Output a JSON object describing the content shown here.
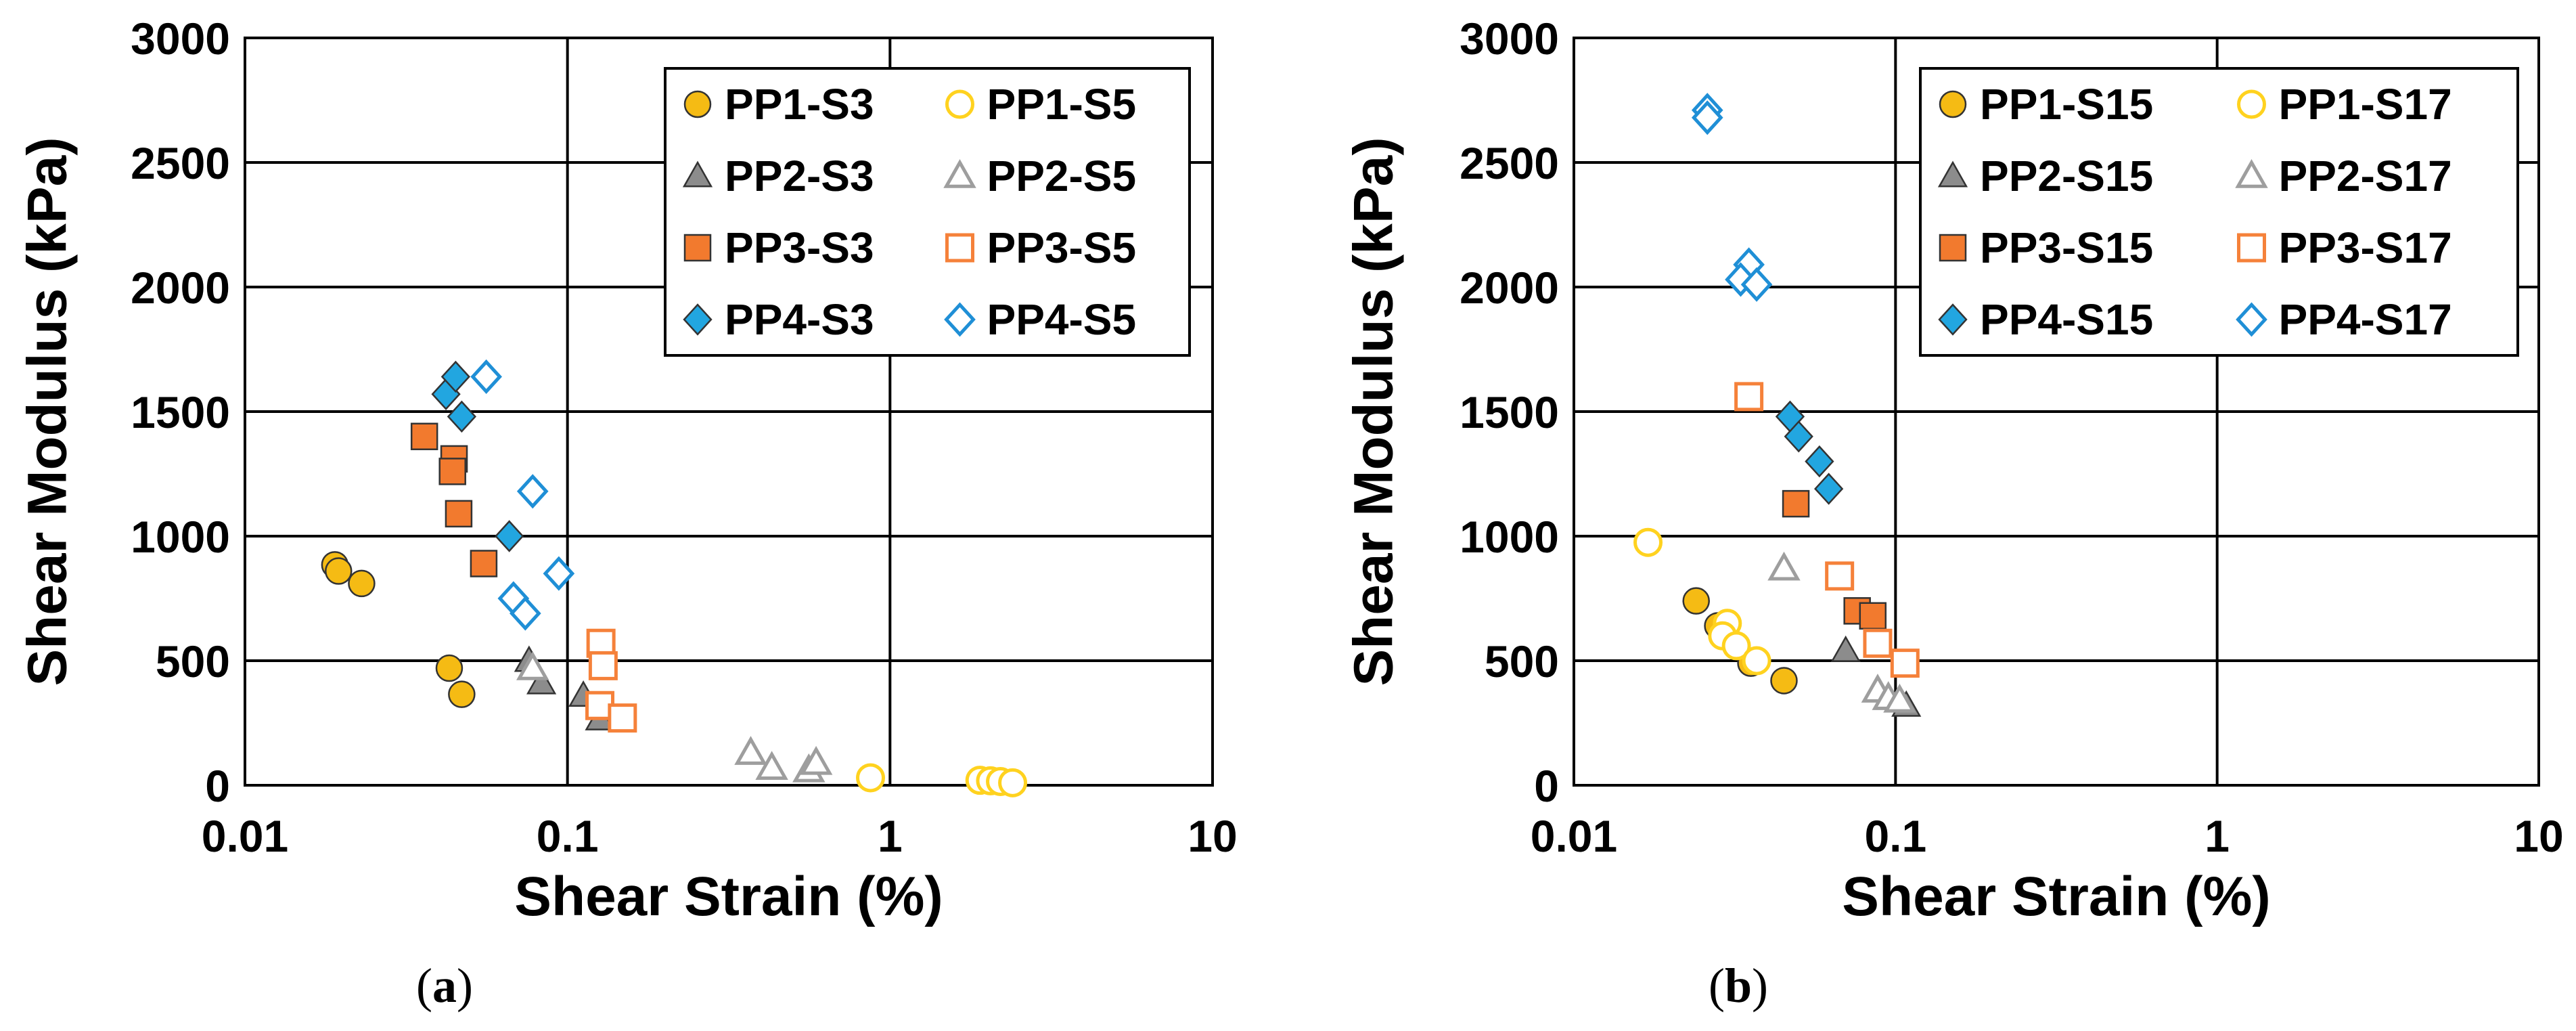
{
  "colors": {
    "PP1": "#f5bb14",
    "PP1_open": "#ffd21f",
    "PP2": "#8c8c8c",
    "PP2_open": "#9e9e9e",
    "PP3": "#f27a2e",
    "PP3_open": "#f5813a",
    "PP4": "#22a6e0",
    "PP4_open": "#1f8fd6"
  },
  "chart_data": [
    {
      "type": "scatter",
      "panel_label": "a",
      "xscale": "log",
      "xlim": [
        0.01,
        10
      ],
      "ylim": [
        0,
        3000
      ],
      "xticks": [
        0.01,
        0.1,
        1,
        10
      ],
      "xtick_labels": [
        "0.01",
        "0.1",
        "1",
        "10"
      ],
      "yticks": [
        0,
        500,
        1000,
        1500,
        2000,
        2500,
        3000
      ],
      "ytick_labels": [
        "0",
        "500",
        "1000",
        "1500",
        "2000",
        "2500",
        "3000"
      ],
      "xlabel": "Shear Strain (%)",
      "ylabel": "Shear Modulus (kPa)",
      "grid": true,
      "legend_position": "top-right",
      "series": [
        {
          "name": "PP1-S3",
          "marker": "circle",
          "filled": true,
          "color_key": "PP1",
          "points": [
            [
              0.019,
              885
            ],
            [
              0.0195,
              860
            ],
            [
              0.023,
              810
            ],
            [
              0.043,
              470
            ],
            [
              0.047,
              365
            ]
          ]
        },
        {
          "name": "PP1-S5",
          "marker": "circle",
          "filled": false,
          "color_key": "PP1_open",
          "points": [
            [
              0.87,
              30
            ],
            [
              1.9,
              20
            ],
            [
              2.05,
              18
            ],
            [
              2.2,
              15
            ],
            [
              2.4,
              10
            ]
          ]
        },
        {
          "name": "PP2-S3",
          "marker": "triangle",
          "filled": true,
          "color_key": "PP2",
          "points": [
            [
              0.076,
              500
            ],
            [
              0.083,
              410
            ],
            [
              0.112,
              360
            ],
            [
              0.126,
              265
            ]
          ]
        },
        {
          "name": "PP2-S5",
          "marker": "triangle",
          "filled": false,
          "color_key": "PP2_open",
          "points": [
            [
              0.078,
              470
            ],
            [
              0.37,
              130
            ],
            [
              0.43,
              70
            ],
            [
              0.56,
              60
            ],
            [
              0.59,
              90
            ]
          ]
        },
        {
          "name": "PP3-S3",
          "marker": "square",
          "filled": true,
          "color_key": "PP3",
          "points": [
            [
              0.036,
              1400
            ],
            [
              0.0445,
              1310
            ],
            [
              0.044,
              1260
            ],
            [
              0.046,
              1090
            ],
            [
              0.055,
              890
            ]
          ]
        },
        {
          "name": "PP3-S5",
          "marker": "square",
          "filled": false,
          "color_key": "PP3_open",
          "points": [
            [
              0.127,
              570
            ],
            [
              0.129,
              480
            ],
            [
              0.126,
              320
            ],
            [
              0.148,
              270
            ]
          ]
        },
        {
          "name": "PP4-S3",
          "marker": "diamond",
          "filled": true,
          "color_key": "PP4",
          "points": [
            [
              0.042,
              1570
            ],
            [
              0.045,
              1640
            ],
            [
              0.047,
              1480
            ],
            [
              0.066,
              1000
            ]
          ]
        },
        {
          "name": "PP4-S5",
          "marker": "diamond",
          "filled": false,
          "color_key": "PP4_open",
          "points": [
            [
              0.056,
              1640
            ],
            [
              0.078,
              1180
            ],
            [
              0.094,
              850
            ],
            [
              0.068,
              750
            ],
            [
              0.074,
              690
            ]
          ]
        }
      ]
    },
    {
      "type": "scatter",
      "panel_label": "b",
      "xscale": "log",
      "xlim": [
        0.01,
        10
      ],
      "ylim": [
        0,
        3000
      ],
      "xticks": [
        0.01,
        0.1,
        1,
        10
      ],
      "xtick_labels": [
        "0.01",
        "0.1",
        "1",
        "10"
      ],
      "yticks": [
        0,
        500,
        1000,
        1500,
        2000,
        2500,
        3000
      ],
      "ytick_labels": [
        "0",
        "500",
        "1000",
        "1500",
        "2000",
        "2500",
        "3000"
      ],
      "xlabel": "Shear Strain (%)",
      "ylabel": "Shear Modulus (kPa)",
      "grid": true,
      "legend_position": "top-right",
      "series": [
        {
          "name": "PP1-S15",
          "marker": "circle",
          "filled": true,
          "color_key": "PP1",
          "points": [
            [
              0.024,
              740
            ],
            [
              0.028,
              640
            ],
            [
              0.0355,
              490
            ],
            [
              0.045,
              420
            ]
          ]
        },
        {
          "name": "PP1-S17",
          "marker": "circle",
          "filled": false,
          "color_key": "PP1_open",
          "points": [
            [
              0.017,
              975
            ],
            [
              0.03,
              650
            ],
            [
              0.029,
              600
            ],
            [
              0.032,
              560
            ],
            [
              0.037,
              500
            ]
          ]
        },
        {
          "name": "PP2-S15",
          "marker": "triangle",
          "filled": true,
          "color_key": "PP2",
          "points": [
            [
              0.07,
              540
            ],
            [
              0.108,
              320
            ]
          ]
        },
        {
          "name": "PP2-S17",
          "marker": "triangle",
          "filled": false,
          "color_key": "PP2_open",
          "points": [
            [
              0.045,
              870
            ],
            [
              0.088,
              380
            ],
            [
              0.095,
              350
            ],
            [
              0.103,
              340
            ]
          ]
        },
        {
          "name": "PP3-S15",
          "marker": "square",
          "filled": true,
          "color_key": "PP3",
          "points": [
            [
              0.049,
              1130
            ],
            [
              0.076,
              700
            ],
            [
              0.085,
              680
            ]
          ]
        },
        {
          "name": "PP3-S17",
          "marker": "square",
          "filled": false,
          "color_key": "PP3_open",
          "points": [
            [
              0.035,
              1560
            ],
            [
              0.067,
              840
            ],
            [
              0.088,
              570
            ],
            [
              0.107,
              490
            ]
          ]
        },
        {
          "name": "PP4-S15",
          "marker": "diamond",
          "filled": true,
          "color_key": "PP4",
          "points": [
            [
              0.047,
              1480
            ],
            [
              0.05,
              1400
            ],
            [
              0.058,
              1300
            ],
            [
              0.062,
              1190
            ]
          ]
        },
        {
          "name": "PP4-S17",
          "marker": "diamond",
          "filled": false,
          "color_key": "PP4_open",
          "points": [
            [
              0.026,
              2710
            ],
            [
              0.026,
              2680
            ],
            [
              0.035,
              2090
            ],
            [
              0.033,
              2030
            ],
            [
              0.037,
              2010
            ]
          ]
        }
      ]
    }
  ]
}
